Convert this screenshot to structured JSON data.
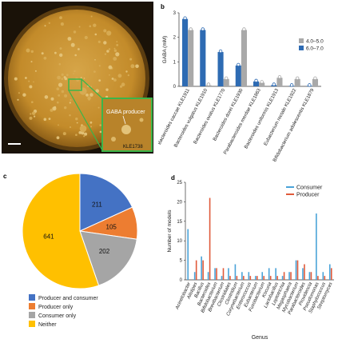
{
  "panels": {
    "a": "a",
    "b": "b",
    "c": "c",
    "d": "d"
  },
  "photo": {
    "annotation_label": "GABA producer",
    "annotation_sublabel": "KLE1738",
    "plate_color": "#c9942f",
    "background_color": "#1a1208",
    "inset_border_color": "#3cb54a"
  },
  "chart_data": [
    {
      "id": "b",
      "type": "bar",
      "ylabel": "GABA (mM)",
      "ylim": [
        0,
        3
      ],
      "yticks": [
        0,
        1,
        2,
        3
      ],
      "categories": [
        "Bacteroides caccae KLE1911",
        "Bacteroides vulgatus KLE1910",
        "Bacteroides ovatus KLE1770",
        "Bacteroides dorei KLE1930",
        "Parabacteroides merdae KLE1863",
        "Bacteroides uniformis KLE1913",
        "Eubacterium rectale KLE1922",
        "Bifidobacterium adolescentis KLE1879"
      ],
      "series": [
        {
          "name": "6.0–7.0",
          "color": "#2e6bb3",
          "values": [
            2.75,
            2.3,
            1.4,
            0.85,
            0.2,
            0.05,
            0.02,
            0.02
          ]
        },
        {
          "name": "4.0–5.0",
          "color": "#a9a9a9",
          "values": [
            2.3,
            0.05,
            0.3,
            2.3,
            0.15,
            0.35,
            0.3,
            0.3
          ]
        }
      ],
      "legend": [
        "4.0–5.0",
        "6.0–7.0"
      ],
      "legend_placement": "top-right"
    },
    {
      "id": "c",
      "type": "pie",
      "slices": [
        {
          "label": "Producer and consumer",
          "value": 211,
          "color": "#4472c4"
        },
        {
          "label": "Producer only",
          "value": 105,
          "color": "#ed7d31"
        },
        {
          "label": "Consumer only",
          "value": 202,
          "color": "#a5a5a5"
        },
        {
          "label": "Neither",
          "value": 641,
          "color": "#ffc000"
        }
      ],
      "legend_placement": "bottom"
    },
    {
      "id": "d",
      "type": "bar",
      "xlabel": "Genus",
      "ylabel": "Number of models",
      "ylim": [
        0,
        25
      ],
      "yticks": [
        0,
        5,
        10,
        15,
        20,
        25
      ],
      "categories": [
        "Acinetobacter",
        "Alistipes",
        "Bacillus",
        "Bacteroides",
        "Bifidobacterium",
        "Brevibacterium",
        "Clostridiales",
        "Clostridium",
        "Corynebacterium",
        "Enterococcus",
        "Eubacterium",
        "Fusobacterium",
        "Kocuria",
        "Lactobacillus",
        "Leptotrichia",
        "Megasphaera",
        "Mycobacterium",
        "Parabacteroides",
        "Providencia",
        "Pseudomonas",
        "Staphylococcus",
        "Streptomyces"
      ],
      "series": [
        {
          "name": "Consumer",
          "color": "#4aa3d8",
          "values": [
            13,
            2,
            6,
            2,
            3,
            1,
            3,
            4,
            2,
            2,
            1,
            2,
            3,
            3,
            1,
            2,
            5,
            3,
            2,
            17,
            2,
            4
          ]
        },
        {
          "name": "Producer",
          "color": "#e05a3a",
          "values": [
            0,
            5,
            5,
            21,
            3,
            3,
            1,
            1,
            1,
            1,
            1,
            1,
            1,
            1,
            2,
            2,
            5,
            4,
            2,
            1,
            1,
            3
          ]
        }
      ],
      "legend_placement": "top-right"
    }
  ]
}
